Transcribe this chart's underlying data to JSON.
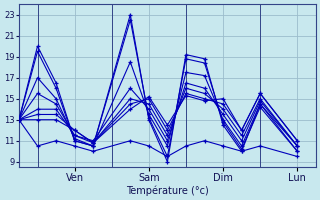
{
  "xlabel": "Température (°c)",
  "bg_color": "#c8e8ee",
  "grid_color": "#9bbccc",
  "line_color": "#0000bb",
  "ylim": [
    8.5,
    24.0
  ],
  "yticks": [
    9,
    11,
    13,
    15,
    17,
    19,
    21,
    23
  ],
  "xlim": [
    0,
    96
  ],
  "day_labels": [
    "Ven",
    "Sam",
    "Dim",
    "Lun"
  ],
  "day_tick_hours": [
    18,
    42,
    66,
    90
  ],
  "day_vline_hours": [
    6,
    30,
    54,
    78
  ],
  "series": [
    {
      "x": [
        0,
        6,
        12,
        18,
        24,
        36,
        42,
        48,
        54,
        60,
        66,
        72,
        78,
        90
      ],
      "y": [
        13.0,
        20.0,
        16.5,
        11.0,
        10.5,
        23.0,
        13.0,
        9.0,
        19.2,
        18.8,
        12.5,
        10.0,
        14.5,
        10.0
      ]
    },
    {
      "x": [
        0,
        6,
        12,
        18,
        24,
        36,
        42,
        48,
        54,
        60,
        66,
        72,
        78,
        90
      ],
      "y": [
        13.0,
        19.5,
        16.0,
        11.0,
        10.5,
        22.5,
        13.2,
        9.5,
        18.8,
        18.4,
        12.8,
        10.2,
        14.2,
        10.0
      ]
    },
    {
      "x": [
        0,
        6,
        12,
        18,
        24,
        36,
        42,
        48,
        54,
        60,
        66,
        72,
        78,
        90
      ],
      "y": [
        13.0,
        17.0,
        15.0,
        11.2,
        10.5,
        18.5,
        13.5,
        10.5,
        17.5,
        17.2,
        13.0,
        10.5,
        14.5,
        10.5
      ]
    },
    {
      "x": [
        0,
        6,
        12,
        18,
        24,
        36,
        42,
        48,
        54,
        60,
        66,
        72,
        78,
        90
      ],
      "y": [
        13.0,
        15.5,
        14.5,
        11.5,
        11.0,
        16.0,
        14.0,
        11.0,
        16.5,
        16.0,
        13.5,
        11.0,
        14.8,
        10.5
      ]
    },
    {
      "x": [
        0,
        6,
        12,
        18,
        24,
        36,
        42,
        48,
        54,
        60,
        66,
        72,
        78,
        90
      ],
      "y": [
        13.0,
        14.0,
        14.0,
        11.5,
        10.8,
        15.0,
        14.5,
        11.5,
        16.0,
        15.5,
        14.0,
        11.5,
        15.0,
        10.5
      ]
    },
    {
      "x": [
        0,
        6,
        12,
        18,
        24,
        36,
        42,
        48,
        54,
        60,
        66,
        72,
        78,
        90
      ],
      "y": [
        13.0,
        13.5,
        13.5,
        12.0,
        10.8,
        14.5,
        15.0,
        12.0,
        15.5,
        15.0,
        14.5,
        12.0,
        15.5,
        11.0
      ]
    },
    {
      "x": [
        0,
        6,
        12,
        18,
        24,
        36,
        42,
        48,
        54,
        60,
        66,
        72,
        78,
        90
      ],
      "y": [
        13.0,
        13.0,
        13.0,
        12.0,
        10.8,
        14.0,
        15.2,
        12.5,
        15.3,
        14.8,
        15.0,
        12.0,
        15.5,
        11.0
      ]
    },
    {
      "x": [
        0,
        6,
        12,
        18,
        24,
        36,
        42,
        48,
        54,
        60,
        66,
        72,
        78,
        90
      ],
      "y": [
        13.0,
        10.5,
        11.0,
        10.5,
        10.0,
        11.0,
        10.5,
        9.5,
        10.5,
        11.0,
        10.5,
        10.0,
        10.5,
        9.5
      ]
    }
  ]
}
